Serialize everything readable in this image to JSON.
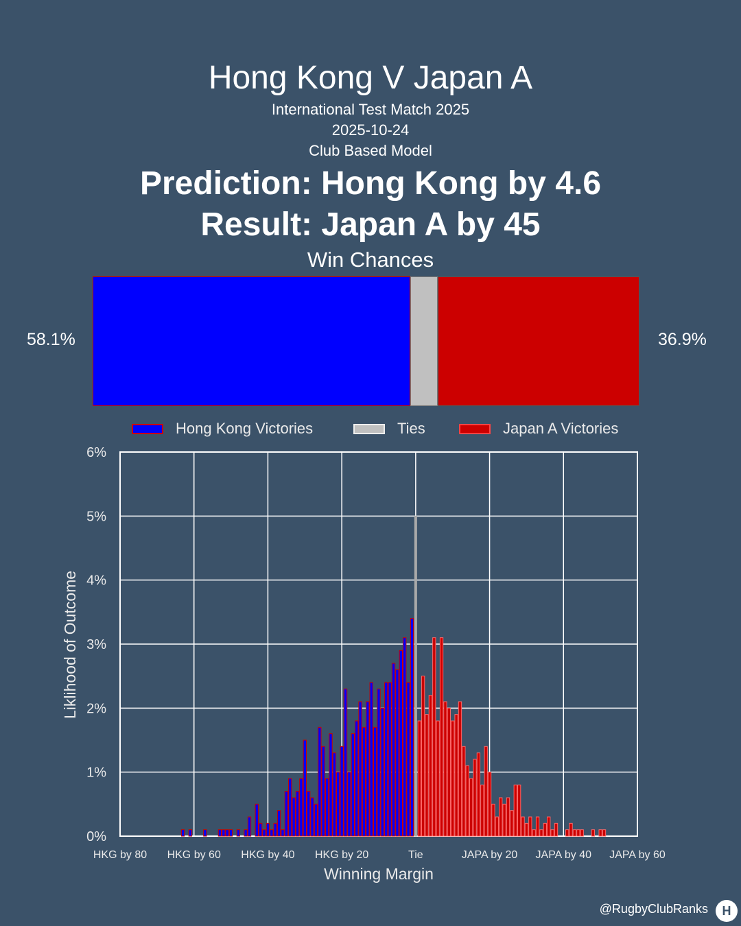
{
  "header": {
    "title": "Hong Kong V Japan A",
    "subtitle1": "International Test Match 2025",
    "subtitle2": "2025-10-24",
    "subtitle3": "Club Based Model",
    "prediction": "Prediction: Hong Kong by 4.6",
    "result": "Result: Japan A by 45",
    "win_chances_label": "Win Chances"
  },
  "win_chances": {
    "home_pct": 58.1,
    "tie_pct": 5.0,
    "away_pct": 36.9,
    "home_label": "58.1%",
    "away_label": "36.9%"
  },
  "legend": {
    "home": "Hong Kong Victories",
    "tie": "Ties",
    "away": "Japan A Victories"
  },
  "colors": {
    "background": "#3b5269",
    "home": "#0000ff",
    "tie": "#c0c0c0",
    "away": "#cc0000",
    "grid": "#ffffff"
  },
  "chart_data": {
    "type": "bar",
    "xlabel": "Winning Margin",
    "ylabel": "Liklihood of Outcome",
    "xlim": [
      -80,
      60
    ],
    "ylim": [
      0,
      6
    ],
    "x_ticks": [
      -80,
      -60,
      -40,
      -20,
      0,
      20,
      40,
      60
    ],
    "x_tick_labels": [
      "HKG by 80",
      "HKG by 60",
      "HKG by 40",
      "HKG by 20",
      "Tie",
      "JAPA by 20",
      "JAPA by 40",
      "JAPA by 60"
    ],
    "y_ticks": [
      0,
      1,
      2,
      3,
      4,
      5,
      6
    ],
    "y_tick_labels": [
      "0%",
      "1%",
      "2%",
      "3%",
      "4%",
      "5%",
      "6%"
    ],
    "grid": true,
    "series": [
      {
        "name": "Hong Kong Victories",
        "margins": [
          -63,
          -61,
          -57,
          -53,
          -52,
          -51,
          -50,
          -48,
          -46,
          -45,
          -43,
          -42,
          -41,
          -40,
          -39,
          -38,
          -37,
          -36,
          -35,
          -34,
          -33,
          -32,
          -31,
          -30,
          -29,
          -28,
          -27,
          -26,
          -25,
          -24,
          -23,
          -22,
          -21,
          -20,
          -19,
          -18,
          -17,
          -16,
          -15,
          -14,
          -13,
          -12,
          -11,
          -10,
          -9,
          -8,
          -7,
          -6,
          -5,
          -4,
          -3,
          -2,
          -1
        ],
        "values": [
          0.1,
          0.1,
          0.1,
          0.1,
          0.1,
          0.1,
          0.1,
          0.1,
          0.1,
          0.3,
          0.5,
          0.2,
          0.1,
          0.2,
          0.1,
          0.2,
          0.4,
          0.1,
          0.7,
          0.9,
          0.6,
          0.7,
          0.9,
          1.5,
          0.7,
          0.6,
          0.5,
          1.7,
          1.4,
          0.9,
          1.6,
          1.3,
          1.0,
          1.4,
          2.3,
          1.0,
          1.6,
          1.8,
          2.1,
          1.7,
          2.1,
          2.4,
          1.7,
          2.3,
          2.0,
          2.4,
          2.4,
          2.7,
          2.6,
          2.9,
          3.1,
          2.4,
          3.4
        ]
      },
      {
        "name": "Ties",
        "margins": [
          0
        ],
        "values": [
          5.0
        ]
      },
      {
        "name": "Japan A Victories",
        "margins": [
          1,
          2,
          3,
          4,
          5,
          6,
          7,
          8,
          9,
          10,
          11,
          12,
          13,
          14,
          15,
          16,
          17,
          18,
          19,
          20,
          21,
          22,
          23,
          24,
          25,
          26,
          27,
          28,
          29,
          30,
          31,
          32,
          33,
          34,
          35,
          36,
          37,
          38,
          41,
          42,
          43,
          44,
          45,
          48,
          50,
          51
        ],
        "values": [
          1.8,
          2.5,
          1.9,
          2.2,
          3.1,
          1.8,
          3.1,
          2.1,
          2.0,
          1.8,
          1.9,
          2.1,
          1.4,
          1.1,
          0.9,
          1.2,
          1.3,
          0.8,
          1.4,
          1.0,
          0.5,
          0.3,
          0.6,
          0.5,
          0.6,
          0.4,
          0.8,
          0.8,
          0.3,
          0.2,
          0.3,
          0.1,
          0.3,
          0.1,
          0.2,
          0.3,
          0.1,
          0.2,
          0.1,
          0.2,
          0.1,
          0.1,
          0.1,
          0.1,
          0.1,
          0.1
        ]
      }
    ]
  },
  "footer": {
    "handle": "@RugbyClubRanks",
    "logo_glyph": "H"
  }
}
